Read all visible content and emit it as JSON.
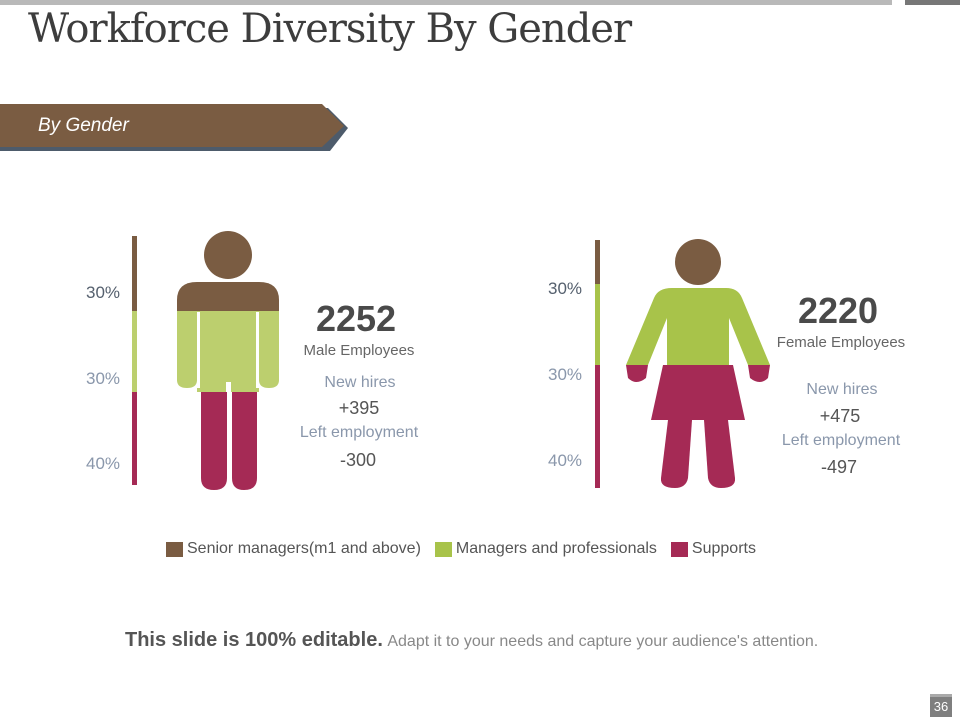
{
  "title": "Workforce Diversity By Gender",
  "banner": "By Gender",
  "colors": {
    "senior": "#7a5c42",
    "managers": "#a8c34a",
    "managers_light": "#bccf6e",
    "supports": "#a52a55"
  },
  "male": {
    "count": "2252",
    "label": "Male Employees",
    "new_hires_label": "New hires",
    "new_hires": "+395",
    "left_label": "Left employment",
    "left": "-300",
    "pct": [
      "30%",
      "30%",
      "40%"
    ]
  },
  "female": {
    "count": "2220",
    "label": "Female Employees",
    "new_hires_label": "New hires",
    "new_hires": "+475",
    "left_label": "Left employment",
    "left": "-497",
    "pct": [
      "30%",
      "30%",
      "40%"
    ]
  },
  "legend": [
    "Senior managers(m1 and above)",
    "Managers and professionals",
    "Supports"
  ],
  "footer": {
    "bold": "This slide is 100% editable.",
    "rest": "Adapt it to your needs and capture your audience's attention."
  },
  "page_number": "36"
}
